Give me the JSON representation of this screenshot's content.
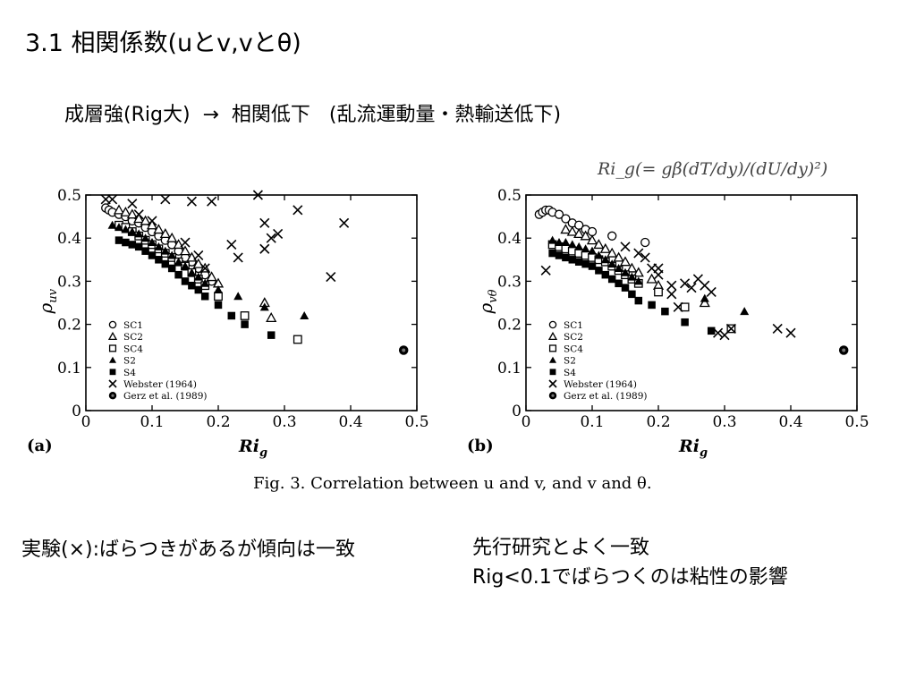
{
  "slide": {
    "title": "3.1 相関係数(uとv,vとθ)",
    "subtitle": "成層強(Rig大)  →  相関低下   (乱流運動量・熱輸送低下)",
    "formula": "Ri_g(= gβ(dT/dy)/(dU/dy)²)",
    "caption": "Fig. 3. Correlation between u and v, and v and θ.",
    "note_left": "実験(×):ばらつきがあるが傾向は一致",
    "note_right": [
      "先行研究とよく一致",
      "Rig<0.1でばらつくのは粘性の影響"
    ]
  },
  "chart_data": [
    {
      "type": "scatter",
      "panel_label": "(a)",
      "xlabel": "Ri",
      "xlabel_sub": "g",
      "ylabel": "ρ",
      "ylabel_sub": "uv",
      "xlim": [
        0,
        0.5
      ],
      "ylim": [
        0,
        0.5
      ],
      "xticks": [
        "0",
        "0.1",
        "0.2",
        "0.3",
        "0.4",
        "0.5"
      ],
      "yticks": [
        "0",
        "0.1",
        "0.2",
        "0.3",
        "0.4",
        "0.5"
      ],
      "legend_position": "bottom-left",
      "series": [
        {
          "name": "SC1",
          "marker": "open-circle",
          "points": [
            [
              0.03,
              0.47
            ],
            [
              0.035,
              0.465
            ],
            [
              0.04,
              0.46
            ],
            [
              0.05,
              0.455
            ],
            [
              0.06,
              0.45
            ],
            [
              0.07,
              0.44
            ],
            [
              0.08,
              0.435
            ],
            [
              0.09,
              0.425
            ],
            [
              0.1,
              0.415
            ],
            [
              0.11,
              0.405
            ],
            [
              0.12,
              0.395
            ],
            [
              0.13,
              0.385
            ],
            [
              0.14,
              0.37
            ],
            [
              0.15,
              0.355
            ],
            [
              0.16,
              0.345
            ],
            [
              0.17,
              0.33
            ],
            [
              0.18,
              0.315
            ],
            [
              0.19,
              0.3
            ]
          ]
        },
        {
          "name": "SC2",
          "marker": "open-triangle",
          "points": [
            [
              0.05,
              0.465
            ],
            [
              0.06,
              0.46
            ],
            [
              0.07,
              0.455
            ],
            [
              0.08,
              0.445
            ],
            [
              0.09,
              0.44
            ],
            [
              0.1,
              0.43
            ],
            [
              0.11,
              0.42
            ],
            [
              0.12,
              0.41
            ],
            [
              0.13,
              0.4
            ],
            [
              0.14,
              0.385
            ],
            [
              0.15,
              0.37
            ],
            [
              0.16,
              0.355
            ],
            [
              0.17,
              0.34
            ],
            [
              0.18,
              0.33
            ],
            [
              0.19,
              0.31
            ],
            [
              0.2,
              0.295
            ],
            [
              0.27,
              0.25
            ],
            [
              0.28,
              0.215
            ]
          ]
        },
        {
          "name": "SC4",
          "marker": "open-square",
          "points": [
            [
              0.05,
              0.43
            ],
            [
              0.06,
              0.425
            ],
            [
              0.07,
              0.415
            ],
            [
              0.08,
              0.405
            ],
            [
              0.09,
              0.395
            ],
            [
              0.1,
              0.385
            ],
            [
              0.11,
              0.375
            ],
            [
              0.12,
              0.365
            ],
            [
              0.13,
              0.355
            ],
            [
              0.14,
              0.345
            ],
            [
              0.15,
              0.335
            ],
            [
              0.16,
              0.32
            ],
            [
              0.17,
              0.305
            ],
            [
              0.18,
              0.29
            ],
            [
              0.2,
              0.265
            ],
            [
              0.24,
              0.22
            ],
            [
              0.32,
              0.165
            ]
          ]
        },
        {
          "name": "S2",
          "marker": "filled-triangle",
          "points": [
            [
              0.04,
              0.43
            ],
            [
              0.05,
              0.425
            ],
            [
              0.06,
              0.42
            ],
            [
              0.07,
              0.415
            ],
            [
              0.08,
              0.41
            ],
            [
              0.09,
              0.4
            ],
            [
              0.1,
              0.39
            ],
            [
              0.11,
              0.38
            ],
            [
              0.12,
              0.37
            ],
            [
              0.13,
              0.36
            ],
            [
              0.14,
              0.345
            ],
            [
              0.15,
              0.335
            ],
            [
              0.16,
              0.32
            ],
            [
              0.17,
              0.31
            ],
            [
              0.18,
              0.295
            ],
            [
              0.2,
              0.28
            ],
            [
              0.23,
              0.265
            ],
            [
              0.27,
              0.24
            ],
            [
              0.33,
              0.22
            ]
          ]
        },
        {
          "name": "S4",
          "marker": "filled-square",
          "points": [
            [
              0.05,
              0.395
            ],
            [
              0.06,
              0.39
            ],
            [
              0.07,
              0.385
            ],
            [
              0.08,
              0.38
            ],
            [
              0.09,
              0.37
            ],
            [
              0.1,
              0.36
            ],
            [
              0.11,
              0.35
            ],
            [
              0.12,
              0.34
            ],
            [
              0.13,
              0.33
            ],
            [
              0.14,
              0.315
            ],
            [
              0.15,
              0.3
            ],
            [
              0.16,
              0.29
            ],
            [
              0.17,
              0.28
            ],
            [
              0.18,
              0.265
            ],
            [
              0.2,
              0.245
            ],
            [
              0.22,
              0.22
            ],
            [
              0.24,
              0.2
            ],
            [
              0.28,
              0.175
            ]
          ]
        },
        {
          "name": "Webster (1964)",
          "marker": "cross",
          "points": [
            [
              0.03,
              0.49
            ],
            [
              0.04,
              0.49
            ],
            [
              0.07,
              0.48
            ],
            [
              0.12,
              0.49
            ],
            [
              0.16,
              0.485
            ],
            [
              0.19,
              0.485
            ],
            [
              0.26,
              0.5
            ],
            [
              0.22,
              0.385
            ],
            [
              0.23,
              0.355
            ],
            [
              0.27,
              0.435
            ],
            [
              0.28,
              0.4
            ],
            [
              0.29,
              0.41
            ],
            [
              0.27,
              0.375
            ],
            [
              0.32,
              0.465
            ],
            [
              0.37,
              0.31
            ],
            [
              0.39,
              0.435
            ],
            [
              0.1,
              0.44
            ],
            [
              0.15,
              0.39
            ],
            [
              0.17,
              0.36
            ],
            [
              0.18,
              0.33
            ],
            [
              0.08,
              0.455
            ]
          ]
        },
        {
          "name": "Gerz et al. (1989)",
          "marker": "circle-dot",
          "points": [
            [
              0.48,
              0.14
            ]
          ]
        }
      ]
    },
    {
      "type": "scatter",
      "panel_label": "(b)",
      "xlabel": "Ri",
      "xlabel_sub": "g",
      "ylabel": "ρ",
      "ylabel_sub": "vθ",
      "xlim": [
        0,
        0.5
      ],
      "ylim": [
        0,
        0.5
      ],
      "xticks": [
        "0",
        "0.1",
        "0.2",
        "0.3",
        "0.4",
        "0.5"
      ],
      "yticks": [
        "0",
        "0.1",
        "0.2",
        "0.3",
        "0.4",
        "0.5"
      ],
      "legend_position": "bottom-left",
      "series": [
        {
          "name": "SC1",
          "marker": "open-circle",
          "points": [
            [
              0.02,
              0.455
            ],
            [
              0.025,
              0.46
            ],
            [
              0.03,
              0.465
            ],
            [
              0.035,
              0.465
            ],
            [
              0.04,
              0.46
            ],
            [
              0.05,
              0.455
            ],
            [
              0.06,
              0.445
            ],
            [
              0.07,
              0.435
            ],
            [
              0.08,
              0.43
            ],
            [
              0.09,
              0.42
            ],
            [
              0.1,
              0.415
            ],
            [
              0.13,
              0.405
            ],
            [
              0.18,
              0.39
            ]
          ]
        },
        {
          "name": "SC2",
          "marker": "open-triangle",
          "points": [
            [
              0.06,
              0.42
            ],
            [
              0.07,
              0.415
            ],
            [
              0.08,
              0.41
            ],
            [
              0.09,
              0.405
            ],
            [
              0.1,
              0.395
            ],
            [
              0.11,
              0.385
            ],
            [
              0.12,
              0.375
            ],
            [
              0.13,
              0.365
            ],
            [
              0.14,
              0.355
            ],
            [
              0.15,
              0.345
            ],
            [
              0.16,
              0.33
            ],
            [
              0.17,
              0.32
            ],
            [
              0.19,
              0.305
            ],
            [
              0.2,
              0.29
            ],
            [
              0.27,
              0.25
            ]
          ]
        },
        {
          "name": "SC4",
          "marker": "open-square",
          "points": [
            [
              0.04,
              0.385
            ],
            [
              0.05,
              0.38
            ],
            [
              0.06,
              0.375
            ],
            [
              0.07,
              0.37
            ],
            [
              0.08,
              0.365
            ],
            [
              0.09,
              0.36
            ],
            [
              0.1,
              0.355
            ],
            [
              0.11,
              0.35
            ],
            [
              0.12,
              0.345
            ],
            [
              0.13,
              0.335
            ],
            [
              0.14,
              0.325
            ],
            [
              0.15,
              0.315
            ],
            [
              0.16,
              0.305
            ],
            [
              0.17,
              0.295
            ],
            [
              0.2,
              0.275
            ],
            [
              0.24,
              0.24
            ],
            [
              0.31,
              0.19
            ]
          ]
        },
        {
          "name": "S2",
          "marker": "filled-triangle",
          "points": [
            [
              0.04,
              0.395
            ],
            [
              0.05,
              0.39
            ],
            [
              0.06,
              0.39
            ],
            [
              0.07,
              0.385
            ],
            [
              0.08,
              0.38
            ],
            [
              0.09,
              0.375
            ],
            [
              0.1,
              0.37
            ],
            [
              0.11,
              0.36
            ],
            [
              0.12,
              0.35
            ],
            [
              0.13,
              0.34
            ],
            [
              0.14,
              0.33
            ],
            [
              0.15,
              0.32
            ],
            [
              0.16,
              0.31
            ],
            [
              0.17,
              0.3
            ],
            [
              0.27,
              0.26
            ],
            [
              0.33,
              0.23
            ]
          ]
        },
        {
          "name": "S4",
          "marker": "filled-square",
          "points": [
            [
              0.04,
              0.365
            ],
            [
              0.05,
              0.36
            ],
            [
              0.06,
              0.355
            ],
            [
              0.07,
              0.35
            ],
            [
              0.08,
              0.345
            ],
            [
              0.09,
              0.34
            ],
            [
              0.1,
              0.335
            ],
            [
              0.11,
              0.325
            ],
            [
              0.12,
              0.315
            ],
            [
              0.13,
              0.305
            ],
            [
              0.14,
              0.295
            ],
            [
              0.15,
              0.285
            ],
            [
              0.16,
              0.27
            ],
            [
              0.17,
              0.255
            ],
            [
              0.19,
              0.245
            ],
            [
              0.21,
              0.23
            ],
            [
              0.24,
              0.205
            ],
            [
              0.28,
              0.185
            ]
          ]
        },
        {
          "name": "Webster (1964)",
          "marker": "cross",
          "points": [
            [
              0.03,
              0.325
            ],
            [
              0.15,
              0.38
            ],
            [
              0.17,
              0.365
            ],
            [
              0.19,
              0.33
            ],
            [
              0.2,
              0.315
            ],
            [
              0.22,
              0.29
            ],
            [
              0.24,
              0.295
            ],
            [
              0.25,
              0.285
            ],
            [
              0.26,
              0.305
            ],
            [
              0.27,
              0.29
            ],
            [
              0.28,
              0.275
            ],
            [
              0.23,
              0.24
            ],
            [
              0.29,
              0.18
            ],
            [
              0.3,
              0.175
            ],
            [
              0.31,
              0.19
            ],
            [
              0.38,
              0.19
            ],
            [
              0.4,
              0.18
            ],
            [
              0.18,
              0.355
            ],
            [
              0.2,
              0.33
            ],
            [
              0.22,
              0.27
            ]
          ]
        },
        {
          "name": "Gerz et al. (1989)",
          "marker": "circle-dot",
          "points": [
            [
              0.48,
              0.14
            ]
          ]
        }
      ]
    }
  ]
}
